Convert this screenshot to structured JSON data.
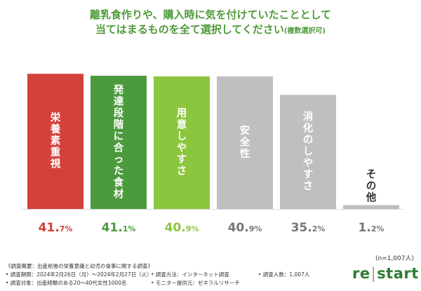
{
  "title": {
    "line1": "離乳食作りや、購入時に気を付けていたこととして",
    "line2": "当てはまるものを全て選択してください",
    "line2_note": "(複数選択可)"
  },
  "chart_data": {
    "type": "bar",
    "categories": [
      "栄養素重視",
      "発達段階に合った食材",
      "用意しやすさ",
      "安全性",
      "消化のしやすさ",
      "その他"
    ],
    "values": [
      41.7,
      41.1,
      40.9,
      40.9,
      35.2,
      1.2
    ],
    "display_values": [
      "41.7",
      "41.1",
      "40.9",
      "40.9",
      "35.2",
      "1.2"
    ],
    "unit": "%",
    "ylim": [
      0,
      45
    ],
    "colors": [
      "#d2413a",
      "#4c9a3e",
      "#8cc63f",
      "#bfbfbf",
      "#bfbfbf",
      "#bfbfbf"
    ],
    "value_colors": [
      "#d2413a",
      "#4c9a3e",
      "#8cc63f",
      "#777777",
      "#777777",
      "#777777"
    ]
  },
  "n_note": "(n=1,007人)",
  "footnotes": {
    "survey_name": "《調査概要：出産前後の栄養意識と幼児の食事に関する調査》",
    "period": "• 調査期間：2024年2月26日（月）～2024年2月27日（火）",
    "method": "• 調査方法：インターネット調査",
    "count": "• 調査人数：1,007人",
    "target": "• 調査対象：出産経験のある20～40代女性1000名",
    "provider": "• モニター提供元：ゼネラルリサーチ"
  },
  "logo": {
    "part1": "re",
    "sep": "|",
    "part2": "start"
  }
}
